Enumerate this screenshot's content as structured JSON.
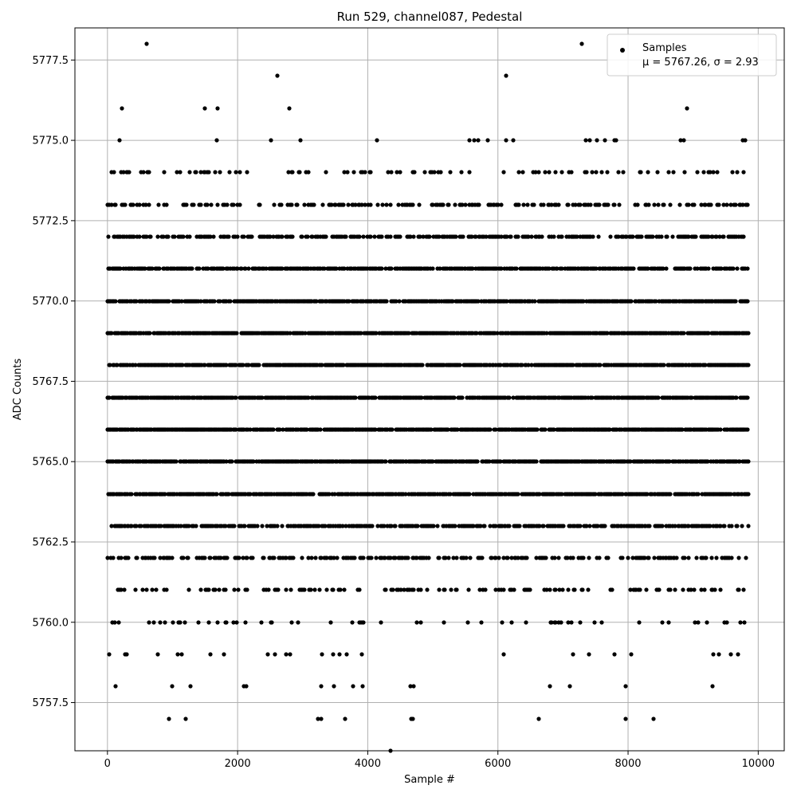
{
  "chart_data": {
    "type": "scatter",
    "title": "Run 529, channel087, Pedestal",
    "xlabel": "Sample #",
    "ylabel": "ADC Counts",
    "xlim": [
      -500,
      10400
    ],
    "ylim": [
      5756.0,
      5778.5
    ],
    "xticks": [
      0,
      2000,
      4000,
      6000,
      8000,
      10000
    ],
    "xtick_labels": [
      "0",
      "2000",
      "4000",
      "6000",
      "8000",
      "10000"
    ],
    "yticks": [
      5757.5,
      5760.0,
      5762.5,
      5765.0,
      5767.5,
      5770.0,
      5772.5,
      5775.0,
      5777.5
    ],
    "ytick_labels": [
      "5757.5",
      "5760.0",
      "5762.5",
      "5765.0",
      "5767.5",
      "5770.0",
      "5772.5",
      "5775.0",
      "5777.5"
    ],
    "grid": true,
    "legend_position": "top-right",
    "marker_color": "#000000",
    "series": [
      {
        "name": "Samples",
        "label_line2": "μ = 5767.26, σ = 2.93",
        "n_samples": 10000,
        "x_range": [
          0,
          9850
        ],
        "mean": 5767.26,
        "std": 2.93,
        "levels": [
          {
            "y": 5757,
            "x": [
              940,
              1200,
              3230,
              3290,
              3650,
              4670,
              4690,
              6630,
              7960,
              8390
            ]
          },
          {
            "y": 5758,
            "x": [
              120,
              990,
              1280,
              2100,
              2130,
              3290,
              3480,
              3780,
              3920,
              4660,
              4710,
              6800,
              7100,
              7960,
              9300
            ]
          },
          {
            "y": 5777,
            "x": [
              2610,
              6120
            ]
          },
          {
            "y": 5776,
            "x": [
              220,
              1500,
              1690,
              2800,
              8900
            ]
          },
          {
            "y": 5775,
            "x": [
              190,
              1680,
              2510,
              2970,
              4140,
              5560,
              5630,
              5700,
              5840,
              6130,
              6240,
              7350,
              7410,
              7520,
              7650,
              7790,
              7820,
              8810,
              8860,
              9760,
              9800
            ]
          }
        ]
      }
    ]
  }
}
